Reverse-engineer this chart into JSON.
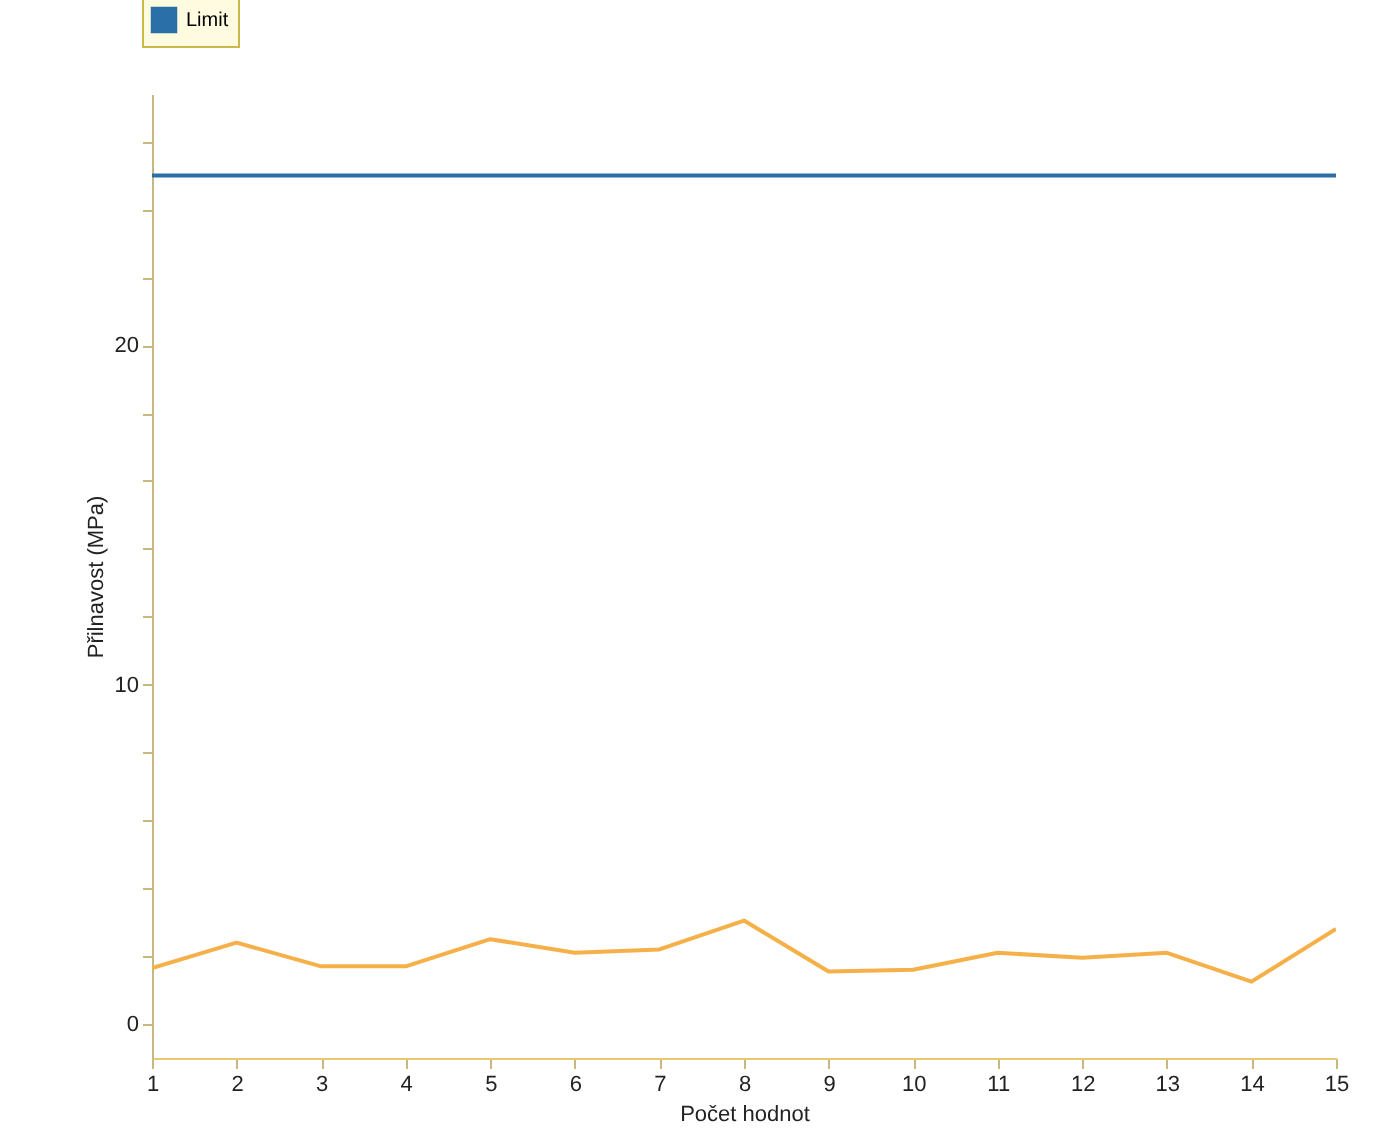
{
  "chart_data": {
    "type": "line",
    "xlabel": "Počet hodnot",
    "ylabel": "Přilnavost (MPa)",
    "x": [
      1,
      2,
      3,
      4,
      5,
      6,
      7,
      8,
      9,
      10,
      11,
      12,
      13,
      14,
      15
    ],
    "series": [
      {
        "color": "#f5b04a",
        "values": [
          1.65,
          2.4,
          1.7,
          1.7,
          2.5,
          2.1,
          2.2,
          3.05,
          1.55,
          1.6,
          2.1,
          1.95,
          2.1,
          1.25,
          2.8
        ]
      },
      {
        "name": "Limit",
        "color": "#2a6fa8",
        "values": [
          25,
          25,
          25,
          25,
          25,
          25,
          25,
          25,
          25,
          25,
          25,
          25,
          25,
          25,
          25
        ]
      }
    ],
    "xlim": [
      1,
      15
    ],
    "xticks": [
      1,
      2,
      3,
      4,
      5,
      6,
      7,
      8,
      9,
      10,
      11,
      12,
      13,
      14,
      15
    ],
    "ylim": [
      -1,
      27.4
    ],
    "yticks": [
      0,
      {
        "value": 2,
        "label": null
      },
      {
        "value": 4,
        "label": null
      },
      {
        "value": 6,
        "label": null
      },
      {
        "value": 8,
        "label": null
      },
      10,
      {
        "value": 12,
        "label": null
      },
      {
        "value": 14,
        "label": null
      },
      {
        "value": 16,
        "label": null
      },
      {
        "value": 18,
        "label": null
      },
      20,
      {
        "value": 22,
        "label": null
      },
      {
        "value": 24,
        "label": null
      },
      {
        "value": 26,
        "label": null
      }
    ],
    "legend": "top left"
  }
}
